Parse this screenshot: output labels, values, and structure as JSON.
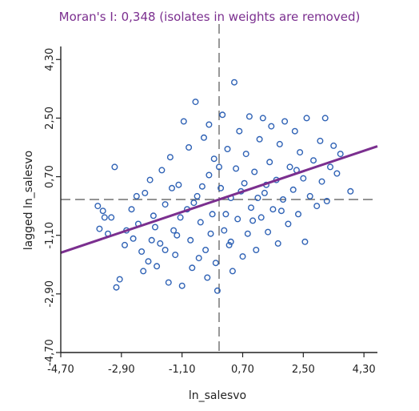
{
  "chart_data": {
    "type": "scatter",
    "title": "Moran's I: 0,348 (isolates in weights are removed)",
    "xlabel": "ln_salesvo",
    "ylabel": "lagged ln_salesvo",
    "xlim": [
      -4.7,
      4.7
    ],
    "ylim": [
      -4.7,
      4.7
    ],
    "x_ticks": [
      "-4,70",
      "-2,90",
      "-1,10",
      "0,70",
      "2,50",
      "4,30"
    ],
    "y_ticks": [
      "-4,70",
      "-2,90",
      "-1,10",
      "0,70",
      "2,50",
      "4,30"
    ],
    "x_tick_values": [
      -4.7,
      -2.9,
      -1.1,
      0.7,
      2.5,
      4.3
    ],
    "y_tick_values": [
      -4.7,
      -2.9,
      -1.1,
      0.7,
      2.5,
      4.3
    ],
    "mean_x": 0.0,
    "mean_y": 0.0,
    "regression": {
      "slope": 0.348,
      "intercept": 0.0,
      "color": "#7b2f8f"
    },
    "point_color": "#2f62b5",
    "points": [
      [
        -3.1,
        1.0
      ],
      [
        -3.6,
        -0.2
      ],
      [
        -3.45,
        -0.35
      ],
      [
        -3.4,
        -0.55
      ],
      [
        -3.3,
        -1.05
      ],
      [
        -3.55,
        -0.9
      ],
      [
        -2.95,
        -2.45
      ],
      [
        -3.05,
        -2.7
      ],
      [
        -2.8,
        -1.4
      ],
      [
        -2.6,
        -0.3
      ],
      [
        -2.4,
        -0.75
      ],
      [
        -2.55,
        -1.2
      ],
      [
        -2.3,
        -1.6
      ],
      [
        -2.2,
        0.2
      ],
      [
        -2.1,
        -1.9
      ],
      [
        -2.05,
        0.6
      ],
      [
        -1.95,
        -0.5
      ],
      [
        -1.85,
        -2.05
      ],
      [
        -1.75,
        -1.35
      ],
      [
        -1.7,
        0.9
      ],
      [
        -1.6,
        -0.15
      ],
      [
        -1.5,
        -2.55
      ],
      [
        -1.45,
        1.3
      ],
      [
        -1.35,
        -0.95
      ],
      [
        -1.3,
        -1.7
      ],
      [
        -1.2,
        0.45
      ],
      [
        -1.1,
        -2.65
      ],
      [
        -1.05,
        2.4
      ],
      [
        -0.95,
        -0.3
      ],
      [
        -0.9,
        1.6
      ],
      [
        -0.85,
        -1.25
      ],
      [
        -0.8,
        -2.1
      ],
      [
        -0.7,
        3.0
      ],
      [
        -0.65,
        0.1
      ],
      [
        -0.55,
        -0.7
      ],
      [
        -0.45,
        1.9
      ],
      [
        -0.4,
        -1.55
      ],
      [
        -0.35,
        -2.4
      ],
      [
        -0.3,
        0.75
      ],
      [
        -0.2,
        -0.45
      ],
      [
        -0.15,
        1.25
      ],
      [
        -0.1,
        -1.95
      ],
      [
        -0.05,
        -2.8
      ],
      [
        0.05,
        0.35
      ],
      [
        0.1,
        2.6
      ],
      [
        0.15,
        -0.95
      ],
      [
        0.25,
        1.55
      ],
      [
        0.3,
        -1.4
      ],
      [
        0.35,
        0.05
      ],
      [
        0.4,
        -2.2
      ],
      [
        0.45,
        3.6
      ],
      [
        0.5,
        0.95
      ],
      [
        0.55,
        -0.6
      ],
      [
        0.6,
        2.1
      ],
      [
        0.7,
        -1.75
      ],
      [
        0.75,
        0.5
      ],
      [
        0.8,
        1.4
      ],
      [
        0.85,
        -1.05
      ],
      [
        0.9,
        2.55
      ],
      [
        0.95,
        -0.25
      ],
      [
        1.05,
        0.85
      ],
      [
        1.1,
        -1.55
      ],
      [
        1.2,
        1.85
      ],
      [
        1.25,
        -0.55
      ],
      [
        1.3,
        2.5
      ],
      [
        1.35,
        0.2
      ],
      [
        1.45,
        -1.0
      ],
      [
        1.5,
        1.15
      ],
      [
        1.55,
        2.25
      ],
      [
        1.6,
        -0.3
      ],
      [
        1.7,
        0.6
      ],
      [
        1.75,
        -1.35
      ],
      [
        1.8,
        1.7
      ],
      [
        1.9,
        0.0
      ],
      [
        1.95,
        2.4
      ],
      [
        2.05,
        -0.75
      ],
      [
        2.1,
        1.0
      ],
      [
        2.2,
        0.3
      ],
      [
        2.25,
        2.1
      ],
      [
        2.35,
        -0.45
      ],
      [
        2.4,
        1.45
      ],
      [
        2.5,
        0.65
      ],
      [
        2.55,
        -1.3
      ],
      [
        2.6,
        2.5
      ],
      [
        2.7,
        0.1
      ],
      [
        2.8,
        1.2
      ],
      [
        2.9,
        -0.2
      ],
      [
        3.0,
        1.8
      ],
      [
        3.05,
        0.55
      ],
      [
        3.15,
        2.5
      ],
      [
        3.2,
        -0.05
      ],
      [
        3.3,
        1.0
      ],
      [
        3.4,
        1.65
      ],
      [
        3.5,
        0.8
      ],
      [
        3.6,
        1.4
      ],
      [
        3.9,
        0.25
      ],
      [
        -3.2,
        -0.55
      ],
      [
        -2.75,
        -0.95
      ],
      [
        -2.45,
        0.1
      ],
      [
        -2.25,
        -2.2
      ],
      [
        -1.9,
        -0.85
      ],
      [
        -1.6,
        -1.55
      ],
      [
        -1.4,
        0.35
      ],
      [
        -1.15,
        -0.55
      ],
      [
        -0.75,
        -0.1
      ],
      [
        -0.5,
        0.4
      ],
      [
        -0.25,
        -1.05
      ],
      [
        0.0,
        1.0
      ],
      [
        0.2,
        -0.45
      ],
      [
        0.65,
        0.25
      ],
      [
        1.0,
        -0.65
      ],
      [
        1.4,
        0.45
      ],
      [
        1.85,
        -0.35
      ],
      [
        2.3,
        0.9
      ],
      [
        -1.25,
        -1.1
      ],
      [
        -0.6,
        -1.8
      ],
      [
        0.35,
        -1.3
      ],
      [
        1.15,
        0.05
      ],
      [
        -2.0,
        -1.25
      ],
      [
        -0.3,
        2.3
      ]
    ]
  }
}
